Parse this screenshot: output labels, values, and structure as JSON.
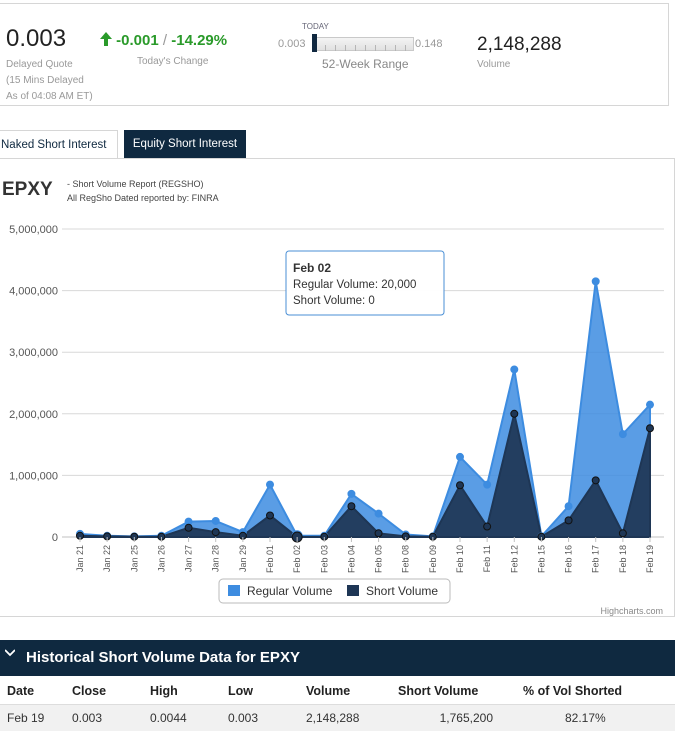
{
  "quote": {
    "price": "0.003",
    "delayed_quote_label": "Delayed Quote",
    "delay_note": "(15 Mins Delayed",
    "as_of": "As of 04:08 AM ET)",
    "change_value": "-0.001",
    "change_separator": "/",
    "change_percent": "-14.29%",
    "change_label": "Today's Change",
    "change_color": "#2a9a2a",
    "range_today_label": "TODAY",
    "range_low": "0.003",
    "range_high": "0.148",
    "range_label": "52-Week Range",
    "volume": "2,148,288",
    "volume_label": "Volume"
  },
  "tabs": [
    {
      "label": "Naked Short Interest",
      "active": false
    },
    {
      "label": "Equity Short Interest",
      "active": true
    }
  ],
  "chart": {
    "symbol": "EPXY",
    "subtitle_line1": "- Short Volume Report  (REGSHO)",
    "subtitle_line2": "All RegSho Dated reported by: FINRA",
    "tooltip": {
      "date": "Feb 02",
      "regular_label": "Regular Volume: 20,000",
      "short_label": "Short Volume: 0"
    },
    "credit": "Highcharts.com"
  },
  "chart_data": {
    "type": "area",
    "categories": [
      "Jan 21",
      "Jan 22",
      "Jan 25",
      "Jan 26",
      "Jan 27",
      "Jan 28",
      "Jan 29",
      "Feb 01",
      "Feb 02",
      "Feb 03",
      "Feb 04",
      "Feb 05",
      "Feb 08",
      "Feb 09",
      "Feb 10",
      "Feb 11",
      "Feb 12",
      "Feb 15",
      "Feb 16",
      "Feb 17",
      "Feb 18",
      "Feb 19"
    ],
    "ylim": [
      0,
      5000000
    ],
    "yticks": [
      "0",
      "1,000,000",
      "2,000,000",
      "3,000,000",
      "4,000,000",
      "5,000,000"
    ],
    "grid": true,
    "legend_position": "bottom",
    "series": [
      {
        "name": "Regular Volume",
        "color": "#3d8ce0",
        "values": [
          50000,
          20000,
          10000,
          20000,
          250000,
          260000,
          80000,
          850000,
          20000,
          20000,
          700000,
          380000,
          40000,
          10000,
          1300000,
          850000,
          2720000,
          10000,
          500000,
          4150000,
          1670000,
          2148288
        ]
      },
      {
        "name": "Short Volume",
        "color": "#1e3655",
        "values": [
          20000,
          10000,
          5000,
          5000,
          150000,
          80000,
          20000,
          350000,
          0,
          5000,
          500000,
          60000,
          10000,
          5000,
          840000,
          170000,
          2000000,
          5000,
          270000,
          920000,
          60000,
          1765200
        ]
      }
    ]
  },
  "historical": {
    "title": "Historical Short Volume Data for EPXY",
    "columns": [
      "Date",
      "Close",
      "High",
      "Low",
      "Volume",
      "Short Volume",
      "% of Vol Shorted"
    ],
    "rows": [
      [
        "Feb 19",
        "0.003",
        "0.0044",
        "0.003",
        "2,148,288",
        "1,765,200",
        "82.17%"
      ]
    ]
  }
}
